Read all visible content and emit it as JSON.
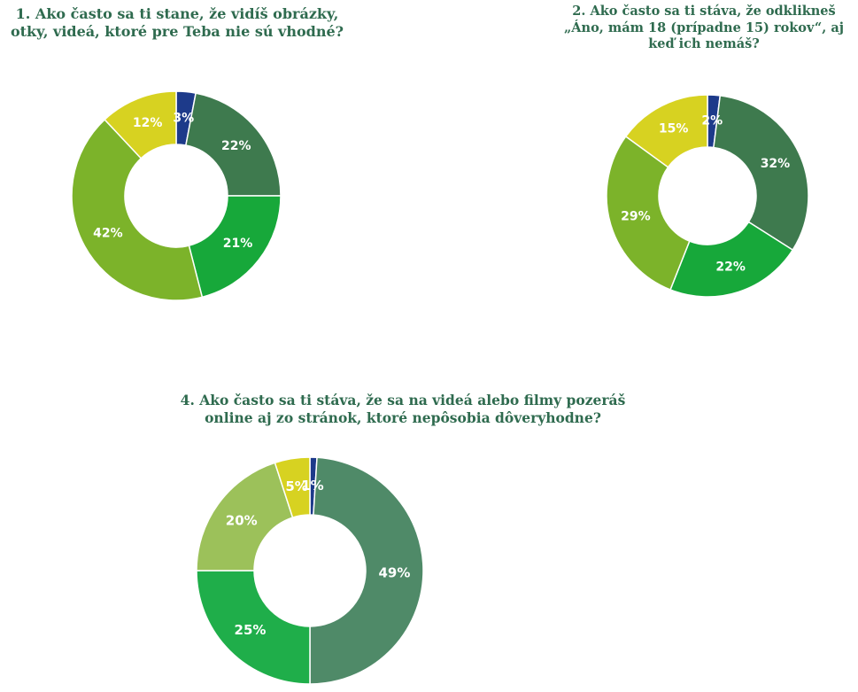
{
  "chart_data": [
    {
      "type": "pie",
      "variant": "donut",
      "title_lines": [
        "1. Ako často sa ti stane, že vidíš obrázky,",
        "otky, videá, ktoré pre Teba nie sú vhodné?"
      ],
      "slices": [
        {
          "value": 3,
          "label": "3%",
          "color": "#1d3a8a"
        },
        {
          "value": 22,
          "label": "22%",
          "color": "#3e7a4e"
        },
        {
          "value": 21,
          "label": "21%",
          "color": "#17a83a"
        },
        {
          "value": 42,
          "label": "42%",
          "color": "#7cb32a"
        },
        {
          "value": 12,
          "label": "12%",
          "color": "#d7d221"
        }
      ]
    },
    {
      "type": "pie",
      "variant": "donut",
      "title_lines": [
        "2. Ako často sa ti stáva, že odklikneš",
        "„Áno, mám 18 (prípadne 15) rokov“, aj",
        "keď ich nemáš?"
      ],
      "slices": [
        {
          "value": 2,
          "label": "2%",
          "color": "#1d3a8a"
        },
        {
          "value": 32,
          "label": "32%",
          "color": "#3e7a4e"
        },
        {
          "value": 22,
          "label": "22%",
          "color": "#17a83a"
        },
        {
          "value": 29,
          "label": "29%",
          "color": "#7cb32a"
        },
        {
          "value": 15,
          "label": "15%",
          "color": "#d7d221"
        }
      ]
    },
    {
      "type": "pie",
      "variant": "donut",
      "title_lines": [
        "4. Ako často sa ti stáva, že sa na videá alebo filmy pozeráš",
        "online aj zo stránok, ktoré nepôsobia dôveryhodne?"
      ],
      "slices": [
        {
          "value": 1,
          "label": "1%",
          "color": "#1d3a8a"
        },
        {
          "value": 49,
          "label": "49%",
          "color": "#4f8a68"
        },
        {
          "value": 25,
          "label": "25%",
          "color": "#1fae4a"
        },
        {
          "value": 20,
          "label": "20%",
          "color": "#9cc15a"
        },
        {
          "value": 5,
          "label": "5%",
          "color": "#d7d221"
        }
      ]
    }
  ]
}
